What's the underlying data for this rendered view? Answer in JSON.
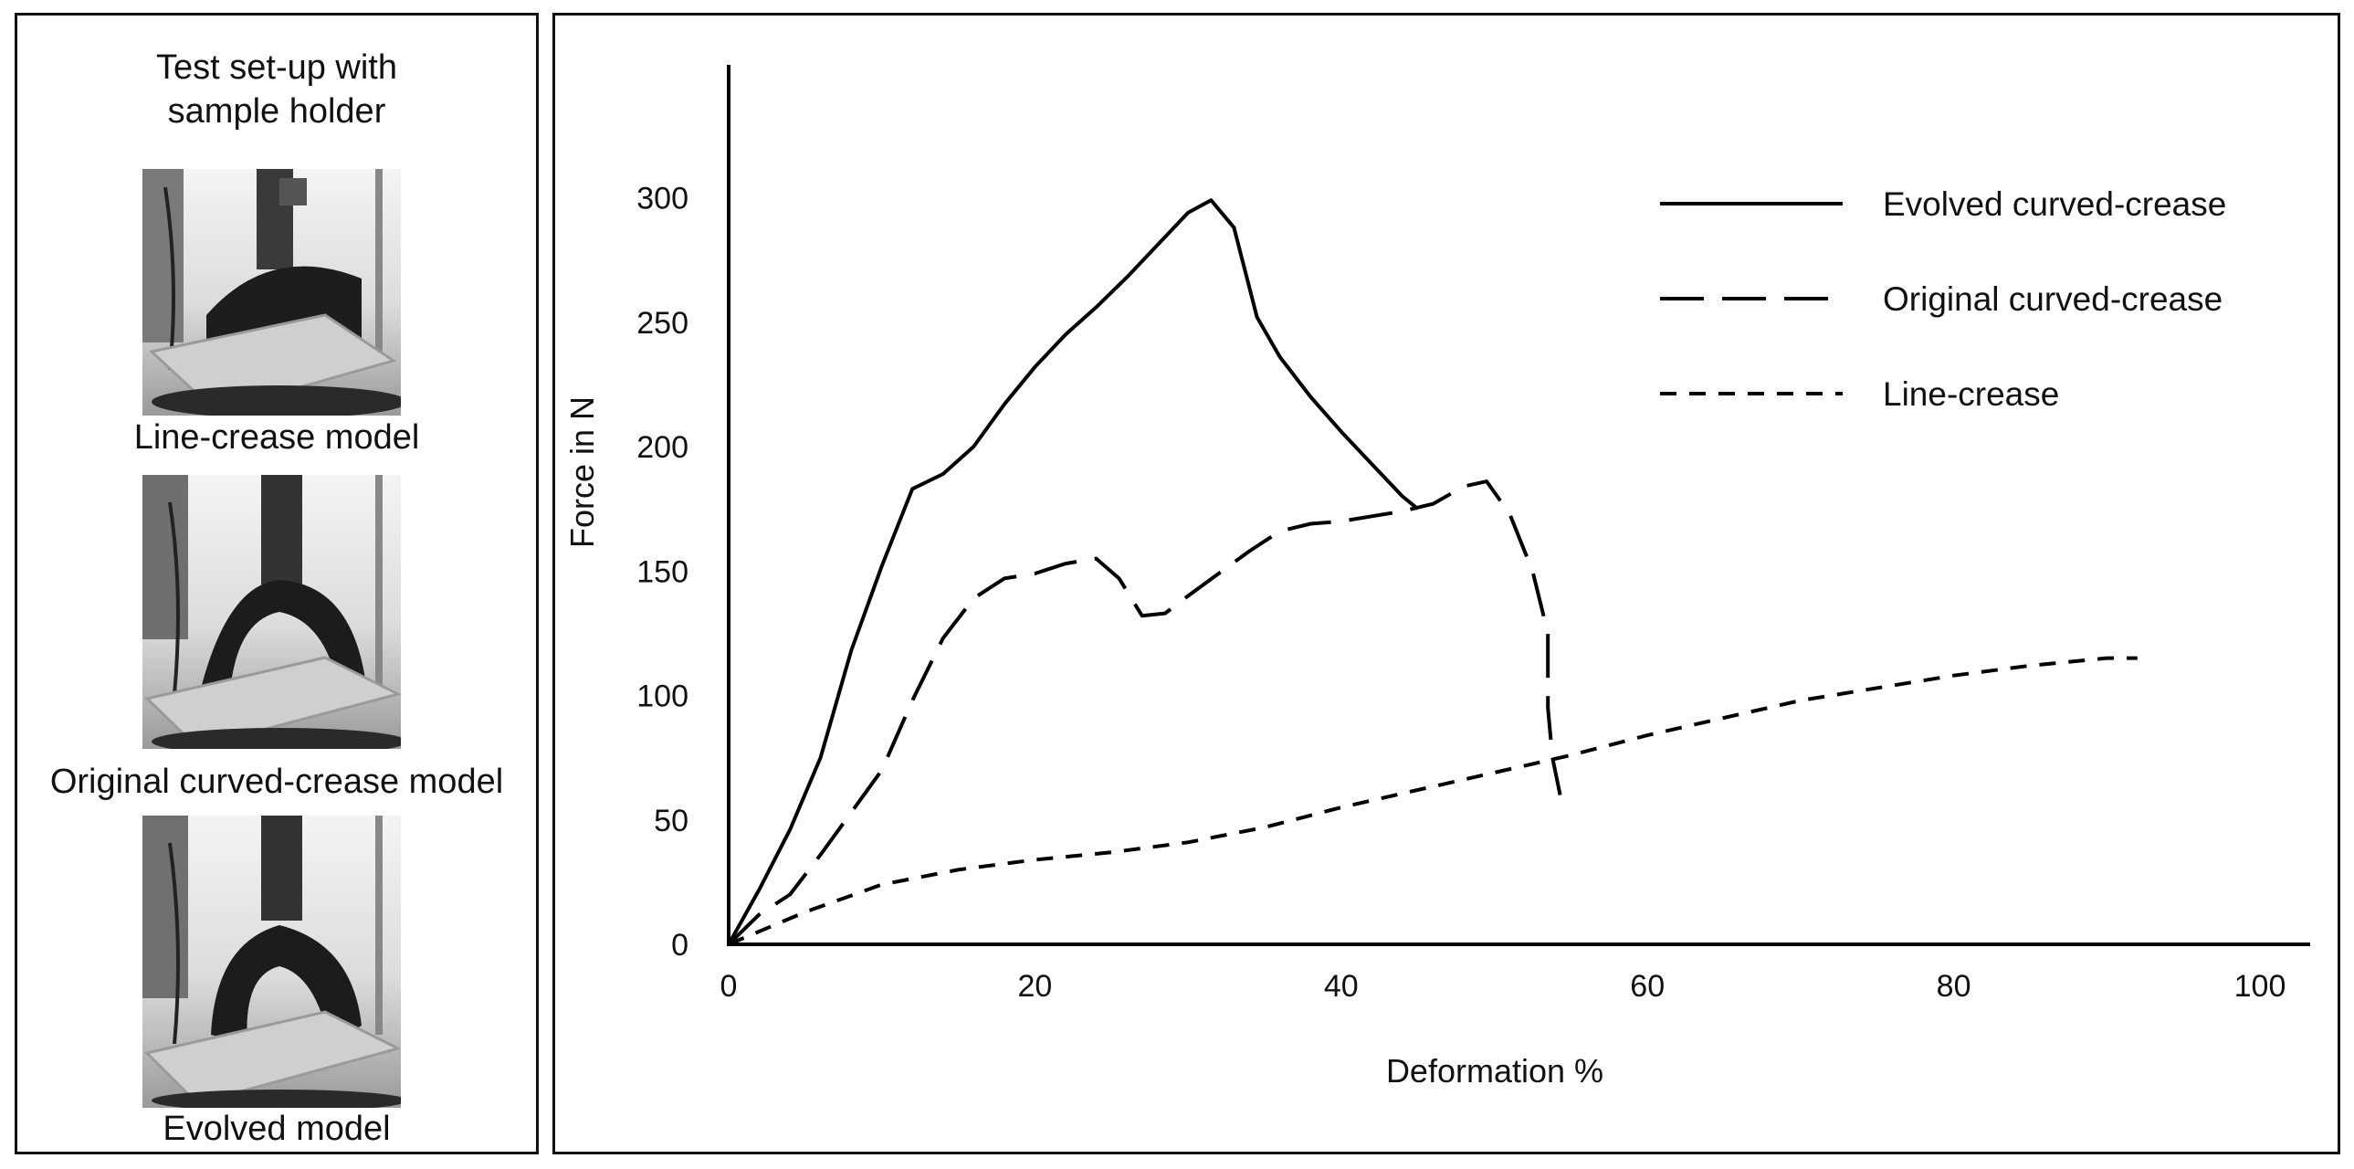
{
  "left_panel": {
    "title_line1": "Test set-up with",
    "title_line2": "sample holder",
    "photos": [
      {
        "caption": "Line-crease model"
      },
      {
        "caption": "Original curved-crease model"
      },
      {
        "caption": "Evolved model"
      }
    ]
  },
  "chart_data": {
    "type": "line",
    "title": "",
    "xlabel": "Deformation %",
    "ylabel": "Force in N",
    "xlim": [
      0,
      100
    ],
    "ylim": [
      0,
      330
    ],
    "xticks": [
      0,
      20,
      40,
      60,
      80,
      100
    ],
    "yticks": [
      0,
      50,
      100,
      150,
      200,
      250,
      300
    ],
    "grid": false,
    "legend_position": "top-right",
    "series": [
      {
        "name": "Evolved curved-crease",
        "style": "solid",
        "color": "#000000",
        "x": [
          0,
          2,
          4,
          6,
          8,
          10,
          12,
          14,
          16,
          18,
          20,
          22,
          24,
          26,
          28,
          30,
          31.5,
          33,
          34.5,
          36,
          38,
          40,
          42,
          44,
          45
        ],
        "y": [
          0,
          22,
          46,
          75,
          118,
          152,
          183,
          189,
          200,
          217,
          232,
          245,
          256,
          268,
          281,
          294,
          299,
          288,
          252,
          236,
          220,
          206,
          193,
          180,
          175
        ]
      },
      {
        "name": "Original curved-crease",
        "style": "long-dash",
        "color": "#000000",
        "x": [
          0,
          2,
          4,
          6,
          8,
          10,
          12,
          14,
          16,
          18,
          20,
          22,
          24,
          25.5,
          27,
          28.5,
          30,
          32,
          34,
          36,
          38,
          40,
          42,
          44,
          46,
          48,
          49.5,
          51,
          52.5,
          53.5,
          53.5,
          53.8,
          54.3
        ],
        "y": [
          0,
          12,
          20,
          36,
          53,
          70,
          98,
          123,
          139,
          147,
          149,
          153,
          155,
          147,
          132,
          133,
          140,
          149,
          158,
          166,
          169,
          170,
          172,
          174,
          177,
          184,
          186,
          173,
          150,
          125,
          95,
          75,
          60
        ]
      },
      {
        "name": "Line-crease",
        "style": "short-dash",
        "color": "#000000",
        "x": [
          0,
          5,
          10,
          15,
          20,
          25,
          30,
          35,
          40,
          45,
          50,
          55,
          60,
          65,
          70,
          75,
          80,
          85,
          90,
          92
        ],
        "y": [
          0,
          13,
          24,
          30,
          34,
          37,
          41,
          47,
          55,
          62,
          69,
          76,
          84,
          91,
          98,
          103,
          108,
          112,
          115,
          115
        ]
      }
    ]
  }
}
